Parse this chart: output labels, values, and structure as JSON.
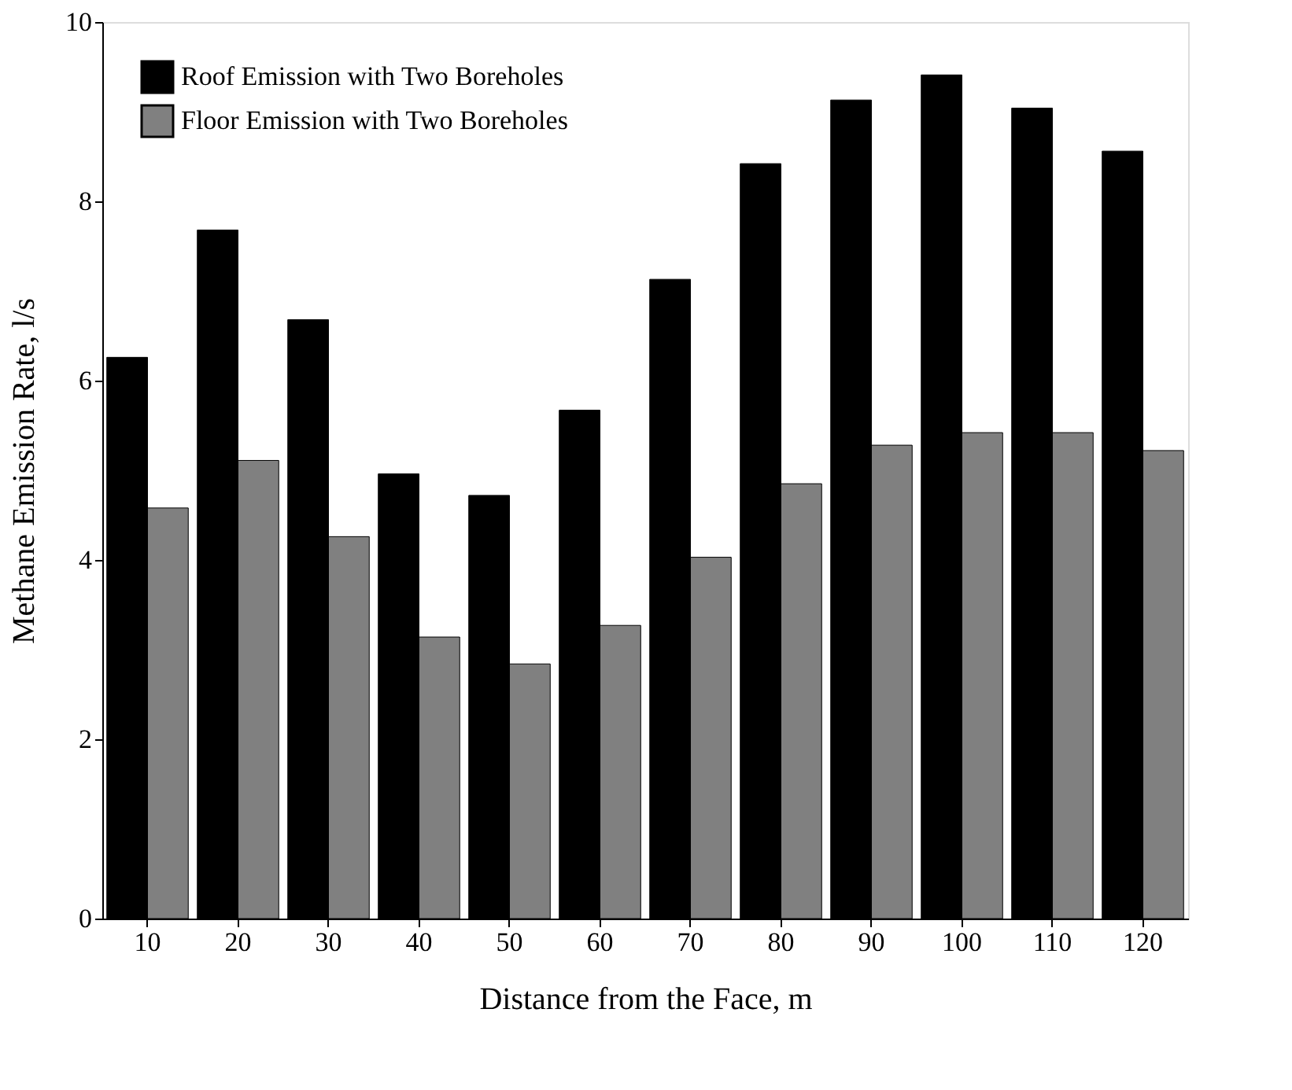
{
  "chart_data": {
    "type": "bar",
    "xlabel": "Distance from the Face, m",
    "ylabel": "Methane Emission Rate, l/s",
    "categories": [
      "10",
      "20",
      "30",
      "40",
      "50",
      "60",
      "70",
      "80",
      "90",
      "100",
      "110",
      "120"
    ],
    "series": [
      {
        "name": "Roof Emission with Two Boreholes",
        "color": "#000000",
        "values": [
          6.26,
          7.68,
          6.68,
          4.96,
          4.72,
          5.67,
          7.13,
          8.42,
          9.13,
          9.41,
          9.04,
          8.56
        ]
      },
      {
        "name": "Floor Emission with Two Boreholes",
        "color": "#808080",
        "values": [
          4.58,
          5.11,
          4.26,
          3.14,
          2.84,
          3.27,
          4.03,
          4.85,
          5.28,
          5.42,
          5.42,
          5.22
        ]
      }
    ],
    "ylim": [
      0,
      10
    ],
    "yticks": [
      0,
      2,
      4,
      6,
      8,
      10
    ],
    "legend": "top left",
    "grid": false
  }
}
